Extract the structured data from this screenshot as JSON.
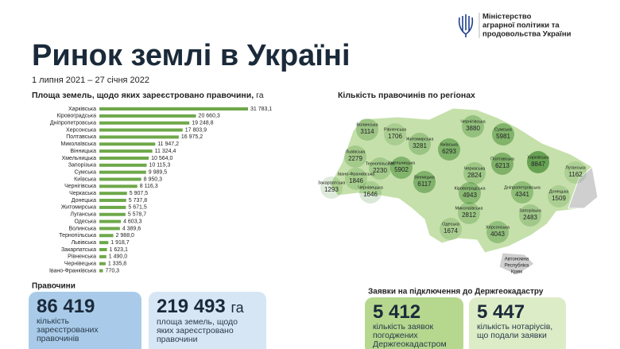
{
  "header": {
    "ministry": [
      "Міністерство",
      "аграрної політики та",
      "продовольства України"
    ],
    "title": "Ринок землі в Україні",
    "date": "1 липня 2021 – 27 січня 2022"
  },
  "chart_data": {
    "type": "bar",
    "title": "Площа земель, щодо яких зареєстровано правочини,",
    "unit": "га",
    "color": "#6ea84a",
    "categories": [
      "Харківська",
      "Кіровоградська",
      "Дніпропетровська",
      "Херсонська",
      "Полтавська",
      "Миколаївська",
      "Вінницька",
      "Хмельницька",
      "Запорізька",
      "Сумська",
      "Київська",
      "Чернігівська",
      "Черкаська",
      "Донецька",
      "Житомирська",
      "Луганська",
      "Одеська",
      "Волинська",
      "Тернопільська",
      "Львівська",
      "Закарпатська",
      "Рівненська",
      "Чернівецька",
      "Івано-Франківська"
    ],
    "values": [
      31783.1,
      20660.3,
      19248.8,
      17803.9,
      16975.2,
      11947.2,
      11324.4,
      10564.0,
      10115.3,
      9989.5,
      8950.3,
      8116.3,
      5907.5,
      5737.8,
      5671.5,
      5578.7,
      4603.3,
      4389.6,
      2988.0,
      1918.7,
      1623.1,
      1490.0,
      1335.8,
      770.3
    ],
    "value_labels": [
      "31 783,1",
      "20 660,3",
      "19 248,8",
      "17 803,9",
      "16 975,2",
      "11 947,2",
      "11 324,4",
      "10 564,0",
      "10 115,3",
      "9 989,5",
      "8 950,3",
      "8 116,3",
      "5 907,5",
      "5 737,8",
      "5 671,5",
      "5 578,7",
      "4 603,3",
      "4 389,6",
      "2 988,0",
      "1 918,7",
      "1 623,1",
      "1 490,0",
      "1 335,8",
      "770,3"
    ]
  },
  "map": {
    "title": "Кількість правочинів по регіонах",
    "regions": [
      {
        "name": "Волинська",
        "value": 3114
      },
      {
        "name": "Рівненська",
        "value": 1706
      },
      {
        "name": "Чернігівська",
        "value": 3880
      },
      {
        "name": "Сумська",
        "value": 5981
      },
      {
        "name": "Житомирська",
        "value": 3281
      },
      {
        "name": "Київська",
        "value": 6293
      },
      {
        "name": "Львівська",
        "value": 2279
      },
      {
        "name": "Тернопільська",
        "value": 2230
      },
      {
        "name": "Хмельницька",
        "value": 5902
      },
      {
        "name": "Полтавська",
        "value": 6213
      },
      {
        "name": "Харківська",
        "value": 8847
      },
      {
        "name": "Луганська",
        "value": 1162
      },
      {
        "name": "Івано-Франківська",
        "value": 1846
      },
      {
        "name": "Закарпатська",
        "value": 1293
      },
      {
        "name": "Чернівецька",
        "value": 1646
      },
      {
        "name": "Вінницька",
        "value": 6117
      },
      {
        "name": "Черкаська",
        "value": 2824
      },
      {
        "name": "Кіровоградська",
        "value": 4943
      },
      {
        "name": "Дніпропетровська",
        "value": 4341
      },
      {
        "name": "Донецька",
        "value": 1509
      },
      {
        "name": "Миколаївська",
        "value": 2812
      },
      {
        "name": "Запорізька",
        "value": 2483
      },
      {
        "name": "Одеська",
        "value": 1674
      },
      {
        "name": "Херсонська",
        "value": 4043
      }
    ],
    "crimea": [
      "Автономна",
      "Республіка",
      "Крим"
    ]
  },
  "deals": {
    "title": "Правочини",
    "cards": [
      {
        "number": "86 419",
        "lines": [
          "кількість",
          "зареєстрованих",
          "правочинів"
        ]
      },
      {
        "number": "219 493",
        "unit": "га",
        "lines": [
          "площа земель, щодо",
          "яких зареєстровано",
          "правочини"
        ]
      }
    ]
  },
  "applications": {
    "title": "Заявки на підключення до Держгеокадастру",
    "cards": [
      {
        "number": "5 412",
        "lines": [
          "кількість заявок",
          "погоджених",
          "Держгеокадастром"
        ]
      },
      {
        "number": "5 447",
        "lines": [
          "кількість нотаріусів,",
          "що подали заявки"
        ]
      }
    ]
  }
}
